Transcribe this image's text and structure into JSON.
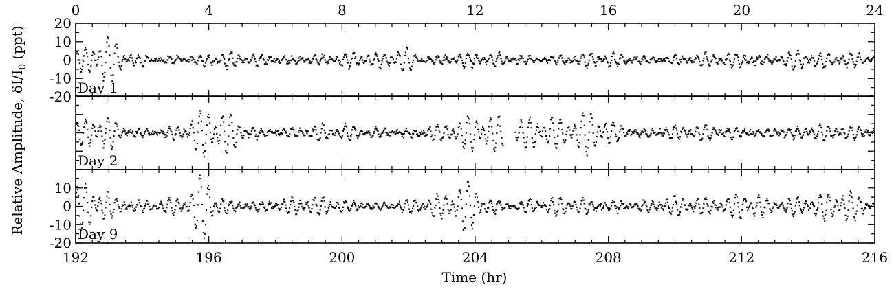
{
  "chart_data": {
    "type": "scatter",
    "ylabel": "Relative Amplitude, δI/I",
    "ylabel_sub": "0",
    "ylabel_unit": "(ppt)",
    "xlabel": "Time (hr)",
    "top_axis": {
      "range": [
        0,
        24
      ],
      "ticks": [
        "0",
        "4",
        "8",
        "12",
        "16",
        "20",
        "24"
      ]
    },
    "bottom_axis": {
      "range": [
        192,
        216
      ],
      "ticks": [
        "192",
        "196",
        "200",
        "204",
        "208",
        "212",
        "216"
      ]
    },
    "ylim": [
      -20,
      20
    ],
    "y_ticks": [
      "20",
      "10",
      "0",
      "-10",
      "-20"
    ],
    "panels": [
      {
        "label": "Day 1",
        "x_range": [
          0,
          24
        ],
        "show_y_ticks": true,
        "base_amp": 3.5,
        "bursts": [
          {
            "t": 0.8,
            "w": 0.6,
            "a": 9
          },
          {
            "t": 9.7,
            "w": 0.4,
            "a": 8
          },
          {
            "t": 10.0,
            "w": 0.2,
            "a": 6
          },
          {
            "t": 21.6,
            "w": 0.5,
            "a": 7
          }
        ],
        "gaps": []
      },
      {
        "label": "Day 2",
        "x_range": [
          24,
          48
        ],
        "show_y_ticks": false,
        "base_amp": 4,
        "bursts": [
          {
            "t": 0.8,
            "w": 0.6,
            "a": 6
          },
          {
            "t": 4.2,
            "w": 0.8,
            "a": 9
          },
          {
            "t": 12.6,
            "w": 0.9,
            "a": 11
          },
          {
            "t": 13.8,
            "w": 0.6,
            "a": 11
          },
          {
            "t": 15.6,
            "w": 0.9,
            "a": 7
          }
        ],
        "gaps": [
          [
            12.85,
            13.2
          ]
        ]
      },
      {
        "label": "Day 9",
        "x_range": [
          192,
          216
        ],
        "show_y_ticks": true,
        "base_amp": 4.5,
        "bursts": [
          {
            "t": 0.6,
            "w": 0.8,
            "a": 10
          },
          {
            "t": 3.9,
            "w": 0.4,
            "a": 13
          },
          {
            "t": 11.9,
            "w": 0.6,
            "a": 14
          },
          {
            "t": 20.1,
            "w": 0.5,
            "a": 13
          },
          {
            "t": 23.2,
            "w": 0.6,
            "a": 11
          }
        ],
        "gaps": []
      }
    ]
  }
}
